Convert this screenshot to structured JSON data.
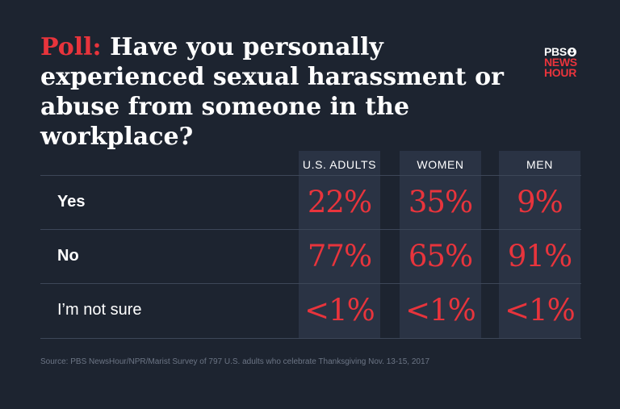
{
  "title": {
    "prefix": "Poll:",
    "text": "Have you personally experienced sexual harassment or abuse from someone in the workplace?"
  },
  "logo": {
    "line1": "PBS",
    "line2": "NEWS",
    "line3": "HOUR"
  },
  "colors": {
    "background": "#1d2430",
    "column_bg": "#2a3344",
    "accent": "#e8343c",
    "text": "#ffffff",
    "source_text": "#6c7585"
  },
  "chart_data": {
    "type": "table",
    "columns": [
      "U.S. ADULTS",
      "WOMEN",
      "MEN"
    ],
    "rows": [
      {
        "label": "Yes",
        "values": [
          "22%",
          "35%",
          "9%"
        ]
      },
      {
        "label": "No",
        "values": [
          "77%",
          "65%",
          "91%"
        ]
      },
      {
        "label": "I’m not sure",
        "values": [
          "<1%",
          "<1%",
          "<1%"
        ]
      }
    ]
  },
  "source": "Source: PBS NewsHour/NPR/Marist  Survey of 797 U.S. adults who celebrate Thanksgiving Nov. 13-15, 2017"
}
